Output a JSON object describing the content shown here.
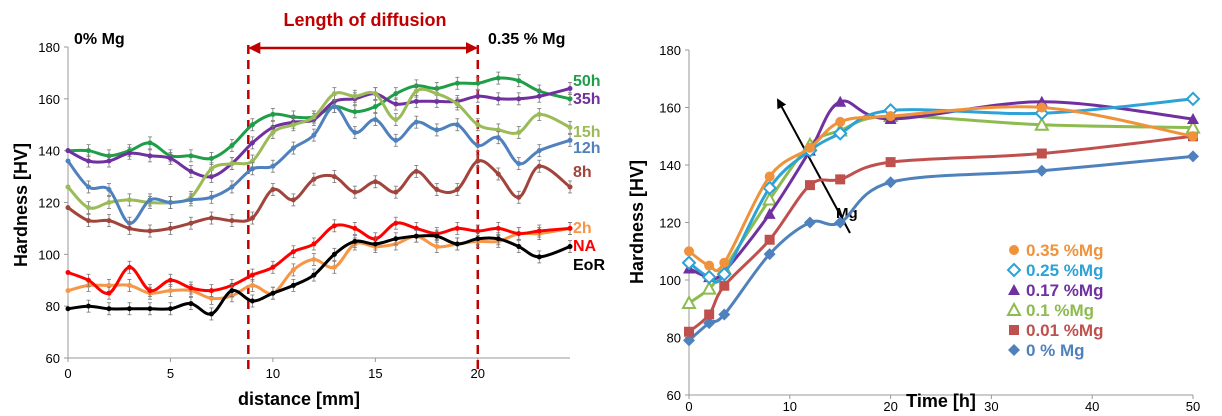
{
  "chart_data": [
    {
      "type": "line",
      "xlabel": "distance [mm]",
      "ylabel": "Hardness [HV]",
      "xlim": [
        0,
        24.5
      ],
      "ylim": [
        60,
        180
      ],
      "xticks": [
        0,
        5,
        10,
        15,
        20
      ],
      "yticks": [
        60,
        80,
        100,
        120,
        140,
        160,
        180
      ],
      "grid": false,
      "annotations": {
        "left_label": "0% Mg",
        "right_label": "0.35 % Mg",
        "span_label": "Length of diffusion",
        "span_from": 8.8,
        "span_to": 20
      },
      "series": [
        {
          "name": "50h",
          "color": "#1f9e48",
          "x": [
            0,
            1,
            2,
            3,
            4,
            5,
            6,
            7,
            8,
            9,
            10,
            11,
            12,
            13,
            14,
            15,
            16,
            17,
            18,
            19,
            20,
            21,
            22,
            23,
            24.5
          ],
          "y": [
            140,
            140,
            138,
            140,
            143,
            138,
            138,
            137,
            142,
            150,
            154,
            153,
            153,
            157,
            155,
            157,
            162,
            165,
            164,
            166,
            166,
            168,
            167,
            163,
            160
          ]
        },
        {
          "name": "35h",
          "color": "#7030a0",
          "x": [
            0,
            1,
            2,
            3,
            4,
            5,
            6,
            7,
            8,
            9,
            10,
            11,
            12,
            13,
            14,
            15,
            16,
            17,
            18,
            19,
            20,
            21,
            22,
            23,
            24.5
          ],
          "y": [
            140,
            136,
            136,
            139,
            138,
            137,
            132,
            130,
            135,
            143,
            149,
            151,
            152,
            159,
            160,
            162,
            158,
            159,
            159,
            159,
            161,
            160,
            160,
            161,
            164
          ]
        },
        {
          "name": "15h",
          "color": "#9bbb59",
          "x": [
            0,
            1,
            2,
            3,
            4,
            5,
            6,
            7,
            8,
            9,
            10,
            11,
            12,
            13,
            14,
            15,
            16,
            17,
            18,
            19,
            20,
            21,
            22,
            23,
            24.5
          ],
          "y": [
            126,
            118,
            120,
            121,
            120,
            120,
            122,
            133,
            135,
            136,
            147,
            150,
            153,
            162,
            161,
            162,
            152,
            163,
            162,
            158,
            150,
            148,
            147,
            154,
            149
          ]
        },
        {
          "name": "12h",
          "color": "#4f81bd",
          "x": [
            0,
            1,
            2,
            3,
            4,
            5,
            6,
            7,
            8,
            9,
            10,
            11,
            12,
            13,
            14,
            15,
            16,
            17,
            18,
            19,
            20,
            21,
            22,
            23,
            24.5
          ],
          "y": [
            136,
            126,
            125,
            112,
            121,
            120,
            121,
            122,
            126,
            133,
            134,
            141,
            146,
            157,
            147,
            152,
            144,
            151,
            148,
            150,
            142,
            145,
            135,
            140,
            144
          ]
        },
        {
          "name": "8h",
          "color": "#a0443c",
          "x": [
            0,
            1,
            2,
            3,
            4,
            5,
            6,
            7,
            8,
            9,
            10,
            11,
            12,
            13,
            14,
            15,
            16,
            17,
            18,
            19,
            20,
            21,
            22,
            23,
            24.5
          ],
          "y": [
            118,
            113,
            113,
            110,
            109,
            110,
            112,
            114,
            113,
            114,
            125,
            121,
            129,
            130,
            124,
            128,
            124,
            132,
            125,
            125,
            136,
            131,
            122,
            134,
            126
          ]
        },
        {
          "name": "2h",
          "color": "#f79646",
          "x": [
            0,
            1,
            2,
            3,
            4,
            5,
            6,
            7,
            8,
            9,
            10,
            11,
            12,
            13,
            14,
            15,
            16,
            17,
            18,
            19,
            20,
            21,
            22,
            23,
            24.5
          ],
          "y": [
            86,
            88,
            88,
            88,
            85,
            86,
            86,
            83,
            84,
            88,
            85,
            94,
            98,
            95,
            104,
            103,
            104,
            107,
            103,
            104,
            105,
            105,
            108,
            108,
            110
          ]
        },
        {
          "name": "NA",
          "color": "#ff0000",
          "x": [
            0,
            1,
            2,
            3,
            4,
            5,
            6,
            7,
            8,
            9,
            10,
            11,
            12,
            13,
            14,
            15,
            16,
            17,
            18,
            19,
            20,
            21,
            22,
            23,
            24.5
          ],
          "y": [
            93,
            90,
            85,
            95,
            86,
            90,
            87,
            86,
            88,
            92,
            95,
            101,
            104,
            111,
            110,
            106,
            112,
            110,
            108,
            110,
            109,
            110,
            108,
            109,
            110
          ]
        },
        {
          "name": "EoR",
          "color": "#000000",
          "x": [
            0,
            1,
            2,
            3,
            4,
            5,
            6,
            7,
            8,
            9,
            10,
            11,
            12,
            13,
            14,
            15,
            16,
            17,
            18,
            19,
            20,
            21,
            22,
            23,
            24.5
          ],
          "y": [
            79,
            80,
            79,
            79,
            79,
            79,
            81,
            77,
            86,
            82,
            85,
            88,
            92,
            100,
            105,
            104,
            106,
            107,
            107,
            104,
            106,
            106,
            103,
            99,
            103
          ]
        }
      ]
    },
    {
      "type": "line",
      "xlabel": "Time [h]",
      "ylabel": "Hardness [HV]",
      "xlim": [
        0,
        50
      ],
      "ylim": [
        60,
        180
      ],
      "xticks": [
        0,
        10,
        20,
        30,
        40,
        50
      ],
      "yticks": [
        60,
        80,
        100,
        120,
        140,
        160,
        180
      ],
      "grid": false,
      "legend_position": "bottom-right",
      "arrow_label": "Mg",
      "series": [
        {
          "name": "0.35 %Mg",
          "color": "#f0923c",
          "marker": "circle",
          "x": [
            0,
            2,
            3.5,
            8,
            12,
            15,
            20,
            35,
            50
          ],
          "y": [
            110,
            105,
            106,
            136,
            146,
            155,
            157,
            160,
            150
          ]
        },
        {
          "name": "0.25 %Mg",
          "color": "#2da2d7",
          "marker": "diamond-open",
          "x": [
            0,
            2,
            3.5,
            8,
            12,
            15,
            20,
            35,
            50
          ],
          "y": [
            106,
            101,
            102,
            132,
            145,
            151,
            159,
            158,
            163
          ]
        },
        {
          "name": "0.17 %Mg",
          "color": "#7030a0",
          "marker": "triangle",
          "x": [
            0,
            2,
            3.5,
            8,
            12,
            15,
            20,
            35,
            50
          ],
          "y": [
            104,
            101,
            103,
            123,
            145,
            162,
            156,
            162,
            156
          ]
        },
        {
          "name": "0.1 %Mg",
          "color": "#8dbb4f",
          "marker": "triangle-open",
          "x": [
            0,
            2,
            3.5,
            8,
            12,
            15,
            20,
            35,
            50
          ],
          "y": [
            92,
            97,
            104,
            128,
            147,
            152,
            157,
            154,
            153
          ]
        },
        {
          "name": "0.01 %Mg",
          "color": "#c0504d",
          "marker": "square",
          "x": [
            0,
            2,
            3.5,
            8,
            12,
            15,
            20,
            35,
            50
          ],
          "y": [
            82,
            88,
            98,
            114,
            133,
            135,
            141,
            144,
            150
          ]
        },
        {
          "name": "0 % Mg",
          "color": "#4f81bd",
          "marker": "diamond",
          "x": [
            0,
            2,
            3.5,
            8,
            12,
            15,
            20,
            35,
            50
          ],
          "y": [
            79,
            85,
            88,
            109,
            120,
            120,
            134,
            138,
            143
          ]
        }
      ]
    }
  ]
}
